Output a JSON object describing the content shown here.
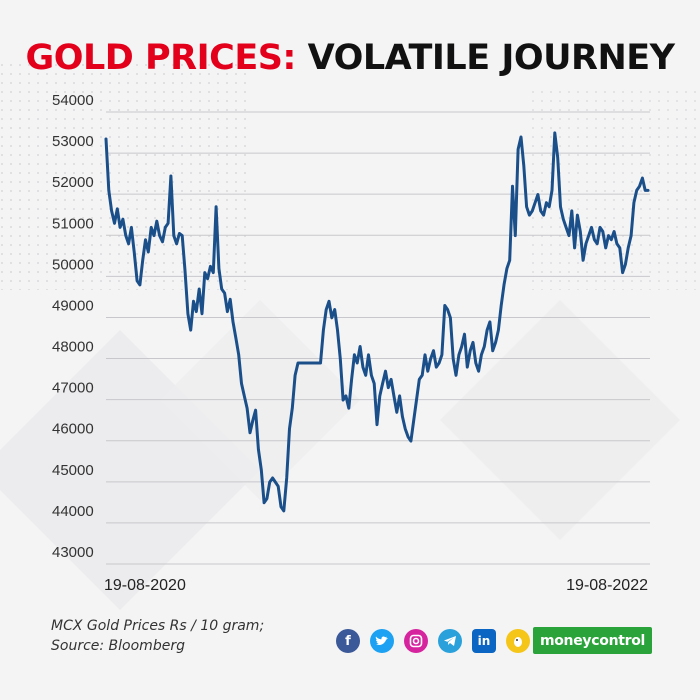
{
  "title_part1": "GOLD PRICES:",
  "title_part2": "VOLATILE JOURNEY",
  "source_line1": "MCX Gold Prices Rs / 10 gram;",
  "source_line2": "Source: Bloomberg",
  "brand_logo": "moneycontrol",
  "social_icons": [
    "facebook-icon",
    "twitter-icon",
    "instagram-icon",
    "telegram-icon",
    "linkedin-icon",
    "koo-icon"
  ],
  "colors": {
    "title_red": "#e3001b",
    "line": "#1b4f8a",
    "brand_green": "#2aa33a"
  },
  "chart_data": {
    "type": "line",
    "title": "GOLD PRICES: VOLATILE JOURNEY",
    "ylim": [
      43000,
      54000
    ],
    "yticks": [
      43000,
      44000,
      45000,
      46000,
      47000,
      48000,
      49000,
      50000,
      51000,
      52000,
      53000,
      54000
    ],
    "x_start_label": "19-08-2020",
    "x_end_label": "19-08-2022",
    "grid": true,
    "series": [
      {
        "values": [
          53050,
          51800,
          51300,
          51000,
          51350,
          50900,
          51100,
          50700,
          50500,
          50900,
          50300,
          49600,
          49500,
          50100,
          50600,
          50300,
          50900,
          50700,
          51050,
          50700,
          50550,
          50900,
          51000,
          52150,
          50700,
          50500,
          50750,
          50700,
          49850,
          48800,
          48400,
          49100,
          48850,
          49400,
          48800,
          49800,
          49650,
          49950,
          49800,
          51400,
          49900,
          49400,
          49300,
          48850,
          49150,
          48600,
          48200,
          47800,
          47100,
          46800,
          46500,
          45900,
          46200,
          46450,
          45500,
          45000,
          44200,
          44300,
          44700,
          44800,
          44700,
          44600,
          44100,
          44000,
          44800,
          46000,
          46500,
          47300,
          47600,
          47600,
          47600,
          47600,
          47600,
          47600,
          47600,
          47600,
          47600,
          48400,
          48900,
          49100,
          48700,
          48900,
          48400,
          47700,
          46700,
          46800,
          46500,
          47200,
          47800,
          47600,
          48000,
          47500,
          47300,
          47800,
          47300,
          47100,
          46100,
          46800,
          47100,
          47400,
          47000,
          47200,
          46800,
          46400,
          46800,
          46300,
          46000,
          45800,
          45700,
          46200,
          46700,
          47200,
          47300,
          47800,
          47400,
          47700,
          47900,
          47500,
          47600,
          47800,
          49000,
          48900,
          48700,
          47700,
          47300,
          47800,
          48000,
          48300,
          47500,
          47900,
          48100,
          47600,
          47400,
          47800,
          48000,
          48400,
          48600,
          47900,
          48100,
          48400,
          49000,
          49500,
          49900,
          50100,
          51900,
          50700,
          52800,
          53100,
          52400,
          51400,
          51200,
          51300,
          51500,
          51700,
          51300,
          51200,
          51500,
          51400,
          51800,
          53200,
          52600,
          51400,
          51100,
          50900,
          50700,
          51300,
          50400,
          51200,
          50800,
          50100,
          50500,
          50700,
          50900,
          50600,
          50500,
          50900,
          50800,
          50400,
          50700,
          50600,
          50800,
          50500,
          50400,
          49800,
          50000,
          50400,
          50700,
          51500,
          51800,
          51900,
          52100,
          51800,
          51800
        ]
      }
    ]
  }
}
